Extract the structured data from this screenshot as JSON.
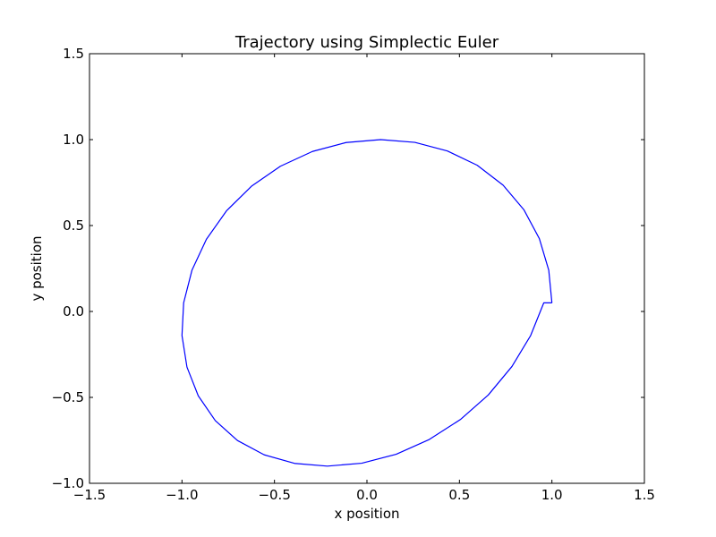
{
  "chart_data": {
    "type": "line",
    "title": "Trajectory using Simplectic Euler",
    "xlabel": "x position",
    "ylabel": "y position",
    "xlim": [
      -1.5,
      1.5
    ],
    "ylim": [
      -1.0,
      1.5
    ],
    "xticks": [
      -1.5,
      -1.0,
      -0.5,
      0.0,
      0.5,
      1.0,
      1.5
    ],
    "xtick_labels": [
      "−1.5",
      "−1.0",
      "−0.5",
      "0.0",
      "0.5",
      "1.0",
      "1.5"
    ],
    "yticks": [
      -1.0,
      -0.5,
      0.0,
      0.5,
      1.0,
      1.5
    ],
    "ytick_labels": [
      "−1.0",
      "−0.5",
      "0.0",
      "0.5",
      "1.0",
      "1.5"
    ],
    "grid": false,
    "series": [
      {
        "color": "#0000ff",
        "x": [
          1.0,
          0.983,
          0.932,
          0.849,
          0.736,
          0.596,
          0.435,
          0.259,
          0.074,
          -0.113,
          -0.295,
          -0.468,
          -0.624,
          -0.759,
          -0.868,
          -0.946,
          -0.991,
          -1.0,
          -0.973,
          -0.912,
          -0.82,
          -0.7,
          -0.556,
          -0.392,
          -0.214,
          -0.028,
          0.158,
          0.337,
          0.505,
          0.656,
          0.784,
          0.885,
          0.956,
          0.994,
          1.0
        ],
        "y": [
          0.05,
          0.24,
          0.424,
          0.591,
          0.735,
          0.851,
          0.934,
          0.984,
          1.0,
          0.983,
          0.931,
          0.845,
          0.729,
          0.586,
          0.42,
          0.24,
          0.05,
          -0.14,
          -0.324,
          -0.491,
          -0.635,
          -0.751,
          -0.834,
          -0.884,
          -0.9,
          -0.883,
          -0.831,
          -0.745,
          -0.629,
          -0.486,
          -0.32,
          -0.14,
          0.05,
          0.05,
          0.05
        ]
      }
    ]
  }
}
